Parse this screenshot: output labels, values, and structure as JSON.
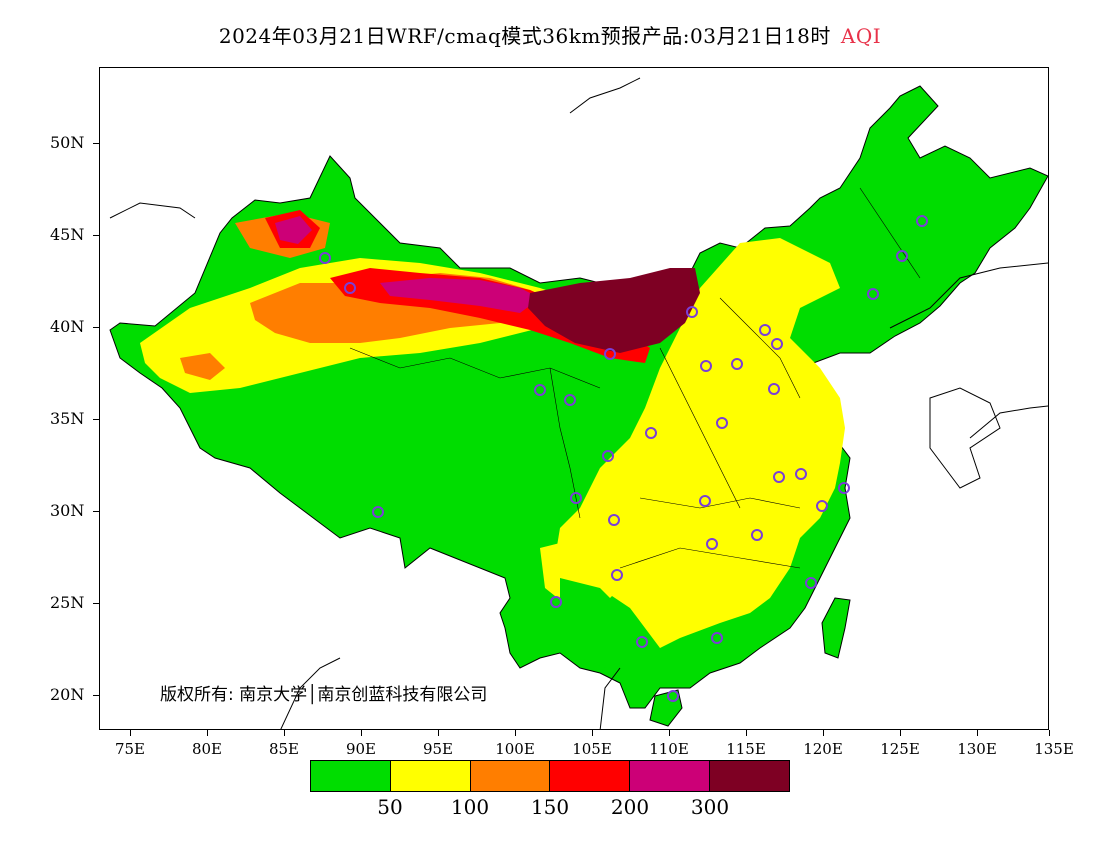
{
  "title": {
    "main": "2024年03月21日WRF/cmaq模式36km预报产品:03月21日18时",
    "variable": "AQI"
  },
  "axes": {
    "y_labels": [
      "50N",
      "45N",
      "40N",
      "35N",
      "30N",
      "25N",
      "20N"
    ],
    "x_labels": [
      "75E",
      "80E",
      "85E",
      "90E",
      "95E",
      "100E",
      "105E",
      "110E",
      "115E",
      "120E",
      "125E",
      "130E",
      "135E"
    ]
  },
  "copyright": "版权所有: 南京大学│南京创蓝科技有限公司",
  "legend": {
    "colors": [
      "#00dd00",
      "#ffff00",
      "#ff7e00",
      "#ff0000",
      "#cc0077",
      "#7e0023"
    ],
    "labels": [
      "50",
      "100",
      "150",
      "200",
      "300"
    ]
  },
  "colors": {
    "background": "#ffffff",
    "station_marker": "#7a3fd6"
  }
}
